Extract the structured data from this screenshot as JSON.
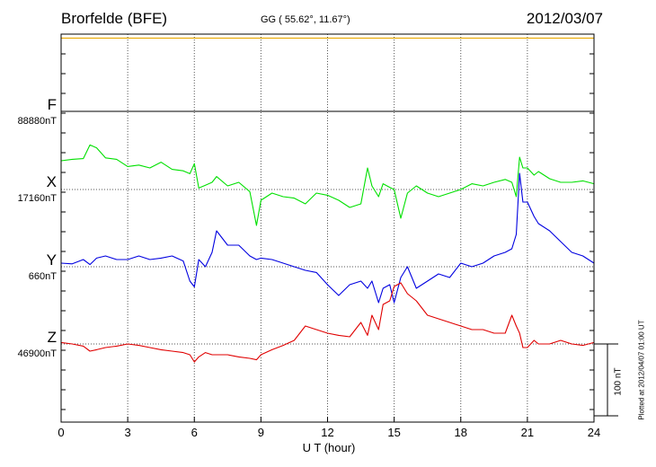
{
  "header": {
    "station": "Brorfelde (BFE)",
    "coords": "GG ( 55.62°,  11.67°)",
    "date": "2012/03/07"
  },
  "channels": [
    {
      "name": "F",
      "baseline": "88880nT",
      "color": "#e8a800"
    },
    {
      "name": "X",
      "baseline": "17160nT",
      "color": "#00e000"
    },
    {
      "name": "Y",
      "baseline": "660nT",
      "color": "#0000e0"
    },
    {
      "name": "Z",
      "baseline": "46900nT",
      "color": "#e00000"
    }
  ],
  "scale_label": "100 nT",
  "plotted_note": "Plotted at 2012/04/07 01:00 UT",
  "chart_data": {
    "type": "line",
    "xlabel": "U T (hour)",
    "xlim": [
      0,
      24
    ],
    "xticks": [
      0,
      3,
      6,
      9,
      12,
      15,
      18,
      21,
      24
    ],
    "ylabel": "",
    "unit": "nT",
    "scale_bar_nT": 100,
    "grid": true,
    "series": [
      {
        "name": "F",
        "baseline": 88880,
        "x": [
          0,
          24
        ],
        "y": [
          102,
          102
        ]
      },
      {
        "name": "X",
        "baseline": 17160,
        "x": [
          0,
          0.5,
          1,
          1.3,
          1.6,
          2,
          2.5,
          3,
          3.5,
          4,
          4.5,
          5,
          5.5,
          5.8,
          6,
          6.2,
          6.5,
          6.8,
          7,
          7.5,
          8,
          8.5,
          8.8,
          9,
          9.5,
          10,
          10.5,
          11,
          11.5,
          12,
          12.5,
          13,
          13.5,
          13.8,
          14,
          14.3,
          14.5,
          14.8,
          15,
          15.3,
          15.6,
          16,
          16.5,
          17,
          17.5,
          18,
          18.5,
          19,
          19.5,
          20,
          20.3,
          20.5,
          20.65,
          20.8,
          21,
          21.3,
          21.5,
          22,
          22.5,
          23,
          23.5,
          24
        ],
        "y": [
          40,
          42,
          43,
          62,
          58,
          44,
          42,
          32,
          34,
          30,
          38,
          28,
          26,
          22,
          36,
          2,
          6,
          10,
          18,
          5,
          10,
          -3,
          -50,
          -15,
          -5,
          -10,
          -12,
          -20,
          -5,
          -8,
          -15,
          -25,
          -20,
          30,
          5,
          -10,
          8,
          3,
          0,
          -40,
          -5,
          5,
          -5,
          -10,
          -5,
          0,
          8,
          5,
          10,
          14,
          10,
          -10,
          45,
          30,
          30,
          20,
          25,
          15,
          10,
          10,
          12,
          8
        ]
      },
      {
        "name": "Y",
        "baseline": 660,
        "x": [
          0,
          0.5,
          1,
          1.3,
          1.6,
          2,
          2.5,
          3,
          3.5,
          4,
          4.5,
          5,
          5.5,
          5.8,
          6,
          6.2,
          6.5,
          6.8,
          7,
          7.5,
          8,
          8.5,
          8.8,
          9,
          9.5,
          10,
          10.5,
          11,
          11.5,
          12,
          12.5,
          13,
          13.5,
          13.8,
          14,
          14.3,
          14.5,
          14.8,
          15,
          15.3,
          15.6,
          16,
          16.5,
          17,
          17.5,
          18,
          18.5,
          19,
          19.5,
          20,
          20.3,
          20.5,
          20.65,
          20.8,
          21,
          21.3,
          21.5,
          22,
          22.5,
          23,
          23.5,
          24
        ],
        "y": [
          5,
          4,
          10,
          3,
          12,
          15,
          10,
          10,
          15,
          10,
          12,
          15,
          8,
          -20,
          -28,
          10,
          0,
          20,
          50,
          30,
          30,
          15,
          10,
          12,
          10,
          5,
          0,
          -5,
          -8,
          -25,
          -40,
          -25,
          -20,
          -30,
          -20,
          -50,
          -30,
          -25,
          -50,
          -15,
          0,
          -30,
          -20,
          -10,
          -15,
          5,
          0,
          5,
          15,
          20,
          25,
          45,
          130,
          90,
          90,
          70,
          60,
          50,
          35,
          20,
          15,
          5
        ]
      },
      {
        "name": "Z",
        "baseline": 46900,
        "x": [
          0,
          0.5,
          1,
          1.3,
          1.6,
          2,
          2.5,
          3,
          3.5,
          4,
          4.5,
          5,
          5.5,
          5.8,
          6,
          6.2,
          6.5,
          6.8,
          7,
          7.5,
          8,
          8.5,
          8.8,
          9,
          9.5,
          10,
          10.5,
          11,
          11.5,
          12,
          12.5,
          13,
          13.5,
          13.8,
          14,
          14.3,
          14.5,
          14.8,
          15,
          15.3,
          15.6,
          16,
          16.5,
          17,
          17.5,
          18,
          18.5,
          19,
          19.5,
          20,
          20.3,
          20.5,
          20.65,
          20.8,
          21,
          21.3,
          21.5,
          22,
          22.5,
          23,
          23.5,
          24
        ],
        "y": [
          2,
          0,
          -3,
          -10,
          -8,
          -5,
          -3,
          0,
          -2,
          -5,
          -8,
          -10,
          -12,
          -15,
          -25,
          -18,
          -12,
          -15,
          -15,
          -15,
          -18,
          -20,
          -22,
          -15,
          -8,
          -2,
          5,
          25,
          20,
          15,
          12,
          10,
          30,
          12,
          40,
          20,
          55,
          60,
          80,
          85,
          70,
          60,
          40,
          35,
          30,
          25,
          20,
          20,
          15,
          15,
          40,
          25,
          15,
          -5,
          -5,
          5,
          0,
          0,
          5,
          0,
          -2,
          2
        ]
      }
    ]
  }
}
